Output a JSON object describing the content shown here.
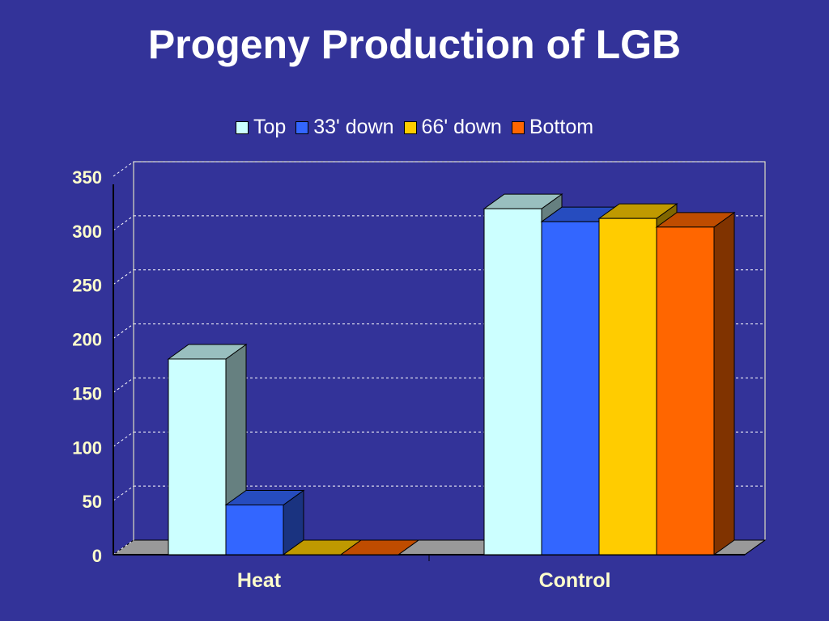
{
  "slide": {
    "title": "Progeny Production of LGB"
  },
  "chart_data": {
    "type": "bar",
    "title": "Progeny Production of LGB",
    "xlabel": "",
    "ylabel": "",
    "categories": [
      "Heat",
      "Control"
    ],
    "series": [
      {
        "name": "Top",
        "values": [
          181,
          320
        ],
        "color": "#CCFFFF",
        "side_color": "#668080",
        "top_color": "#99BFBF"
      },
      {
        "name": "33' down",
        "values": [
          46,
          308
        ],
        "color": "#3366FF",
        "side_color": "#1A3380",
        "top_color": "#264CBF"
      },
      {
        "name": "66' down",
        "values": [
          0,
          311
        ],
        "color": "#FFCC00",
        "side_color": "#806600",
        "top_color": "#BF9900"
      },
      {
        "name": "Bottom",
        "values": [
          0,
          303
        ],
        "color": "#FF6600",
        "side_color": "#803300",
        "top_color": "#BF4C00"
      }
    ],
    "yticks": [
      "0",
      "50",
      "100",
      "150",
      "200",
      "250",
      "300",
      "350"
    ],
    "ylim": [
      0,
      350
    ],
    "grid": true,
    "legend_position": "top-center",
    "style": "3d-clustered-column"
  }
}
